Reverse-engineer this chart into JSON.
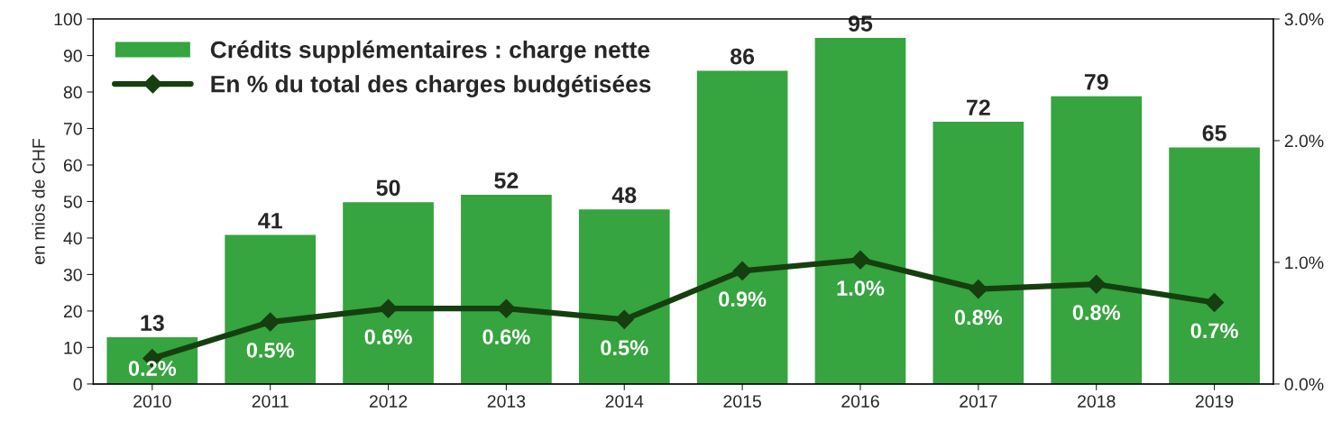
{
  "chart_data": {
    "type": "bar",
    "ylabel": "en mios de CHF",
    "categories": [
      "2010",
      "2011",
      "2012",
      "2013",
      "2014",
      "2015",
      "2016",
      "2017",
      "2018",
      "2019"
    ],
    "series": [
      {
        "name": "Crédits supplémentaires : charge nette",
        "color": "#36a43f",
        "values": [
          13,
          41,
          50,
          52,
          48,
          86,
          95,
          72,
          79,
          65
        ],
        "data_labels": true
      },
      {
        "name": "En % du total des charges budgétisées",
        "type": "line",
        "axis": "y2",
        "color": "#163f10",
        "marker": "diamond",
        "line_style": "solid",
        "values": [
          0.21,
          0.51,
          0.62,
          0.62,
          0.53,
          0.93,
          1.02,
          0.78,
          0.82,
          0.67
        ],
        "value_labels": [
          "0.2%",
          "0.5%",
          "0.6%",
          "0.6%",
          "0.5%",
          "0.9%",
          "1.0%",
          "0.8%",
          "0.8%",
          "0.7%"
        ]
      }
    ],
    "ylim": [
      0,
      100
    ],
    "yticks": [
      0,
      10,
      20,
      30,
      40,
      50,
      60,
      70,
      80,
      90,
      100
    ],
    "y2lim": [
      0,
      3
    ],
    "y2ticks": [
      {
        "value": 0,
        "label": "0.0%"
      },
      {
        "value": 1,
        "label": "1.0%"
      },
      {
        "value": 2,
        "label": "2.0%"
      },
      {
        "value": 3,
        "label": "3.0%"
      }
    ],
    "grid": false,
    "legend": "top left"
  }
}
